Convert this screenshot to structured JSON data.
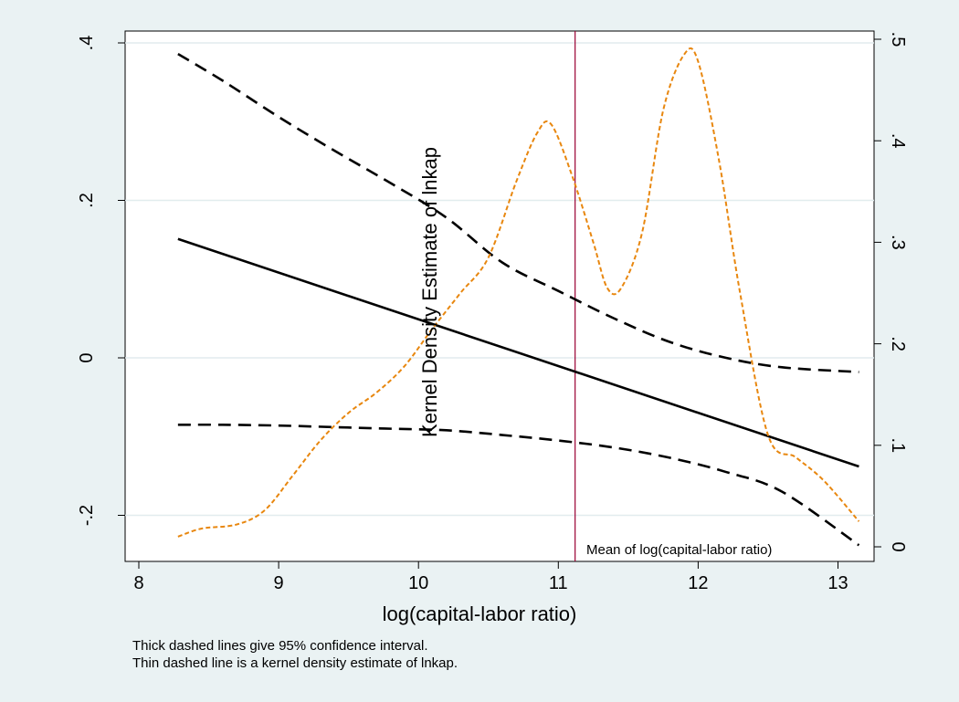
{
  "chart_data": {
    "type": "line",
    "xlabel": "log(capital-labor ratio)",
    "ylabel_right_panel": "Kernel Density Estimate of lnkap",
    "xlim": [
      8,
      13.2
    ],
    "ylim_left": [
      -0.2,
      0.4
    ],
    "ylim_right": [
      0,
      0.5
    ],
    "x_ticks": [
      8,
      9,
      10,
      11,
      12,
      13
    ],
    "x_tick_labels": [
      "8",
      "9",
      "10",
      "11",
      "12",
      "13"
    ],
    "y_left_ticks": [
      -0.2,
      0,
      0.2,
      0.4
    ],
    "y_left_tick_labels": [
      "-.2",
      "0",
      ".2",
      ".4"
    ],
    "y_right_ticks": [
      0,
      0.1,
      0.2,
      0.3,
      0.4,
      0.5
    ],
    "y_right_tick_labels": [
      "0",
      ".1",
      ".2",
      ".3",
      ".4",
      ".5"
    ],
    "grid": true,
    "vline": {
      "x": 11.12,
      "label": "Mean of log(capital-labor ratio)",
      "color": "#990033"
    },
    "series": [
      {
        "axis": "left",
        "style": "solid",
        "color": "#000000",
        "x": [
          8.28,
          13.15
        ],
        "y": [
          0.151,
          -0.138
        ]
      },
      {
        "axis": "left",
        "style": "dashed",
        "color": "#000000",
        "x": [
          8.28,
          8.6,
          9.0,
          9.4,
          9.8,
          10.2,
          10.6,
          11.0,
          11.4,
          11.8,
          12.2,
          12.6,
          13.15
        ],
        "y": [
          0.386,
          0.352,
          0.306,
          0.263,
          0.222,
          0.178,
          0.121,
          0.085,
          0.05,
          0.02,
          0.0,
          -0.012,
          -0.018
        ]
      },
      {
        "axis": "left",
        "style": "dashed",
        "color": "#000000",
        "x": [
          8.28,
          8.6,
          9.0,
          9.4,
          9.8,
          10.2,
          10.6,
          11.0,
          11.4,
          11.8,
          12.2,
          12.6,
          13.15
        ],
        "y": [
          -0.085,
          -0.085,
          -0.086,
          -0.088,
          -0.09,
          -0.092,
          -0.098,
          -0.105,
          -0.114,
          -0.127,
          -0.145,
          -0.17,
          -0.238
        ]
      },
      {
        "axis": "right",
        "style": "dotted",
        "color": "#e8870f",
        "x": [
          8.28,
          8.45,
          8.7,
          8.9,
          9.1,
          9.3,
          9.5,
          9.7,
          9.9,
          10.1,
          10.3,
          10.5,
          10.7,
          10.85,
          10.95,
          11.1,
          11.25,
          11.35,
          11.45,
          11.6,
          11.75,
          11.9,
          12.0,
          12.15,
          12.3,
          12.5,
          12.7,
          12.9,
          13.15
        ],
        "y": [
          0.01,
          0.018,
          0.022,
          0.036,
          0.07,
          0.105,
          0.132,
          0.152,
          0.178,
          0.215,
          0.25,
          0.285,
          0.36,
          0.408,
          0.416,
          0.365,
          0.3,
          0.255,
          0.255,
          0.31,
          0.43,
          0.485,
          0.478,
          0.38,
          0.25,
          0.11,
          0.088,
          0.065,
          0.025
        ]
      }
    ],
    "notes": [
      "Thick dashed lines give 95% confidence interval.",
      "Thin dashed line is a kernel density estimate of lnkap."
    ]
  }
}
